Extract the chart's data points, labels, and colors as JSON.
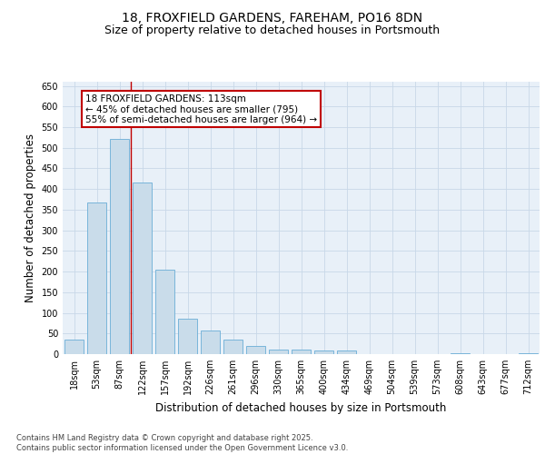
{
  "title_line1": "18, FROXFIELD GARDENS, FAREHAM, PO16 8DN",
  "title_line2": "Size of property relative to detached houses in Portsmouth",
  "xlabel": "Distribution of detached houses by size in Portsmouth",
  "ylabel": "Number of detached properties",
  "categories": [
    "18sqm",
    "53sqm",
    "87sqm",
    "122sqm",
    "157sqm",
    "192sqm",
    "226sqm",
    "261sqm",
    "296sqm",
    "330sqm",
    "365sqm",
    "400sqm",
    "434sqm",
    "469sqm",
    "504sqm",
    "539sqm",
    "573sqm",
    "608sqm",
    "643sqm",
    "677sqm",
    "712sqm"
  ],
  "values": [
    35,
    367,
    522,
    416,
    205,
    85,
    57,
    35,
    20,
    10,
    10,
    8,
    8,
    0,
    0,
    0,
    0,
    3,
    0,
    0,
    3
  ],
  "bar_color": "#c9dcea",
  "bar_edge_color": "#6aaed6",
  "grid_color": "#c8d8e8",
  "background_color": "#e8f0f8",
  "vline_color": "#c00000",
  "vline_position": 2.5,
  "annotation_box_text": "18 FROXFIELD GARDENS: 113sqm\n← 45% of detached houses are smaller (795)\n55% of semi-detached houses are larger (964) →",
  "ylim": [
    0,
    660
  ],
  "yticks": [
    0,
    50,
    100,
    150,
    200,
    250,
    300,
    350,
    400,
    450,
    500,
    550,
    600,
    650
  ],
  "footer_line1": "Contains HM Land Registry data © Crown copyright and database right 2025.",
  "footer_line2": "Contains public sector information licensed under the Open Government Licence v3.0.",
  "title_fontsize": 10,
  "subtitle_fontsize": 9,
  "tick_fontsize": 7,
  "label_fontsize": 8.5,
  "annotation_fontsize": 7.5,
  "footer_fontsize": 6
}
